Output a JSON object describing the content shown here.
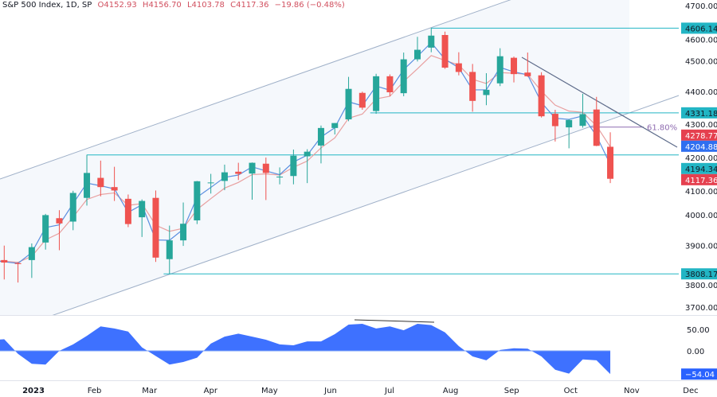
{
  "legend": {
    "symbol": "S&P 500 Index, 1D, SP",
    "open": "O4152.93",
    "high": "H4156.70",
    "low": "L4103.78",
    "close": "C4117.36",
    "change": "−19.86 (−0.48%)"
  },
  "colors": {
    "up": "#26a69a",
    "down": "#ef5350",
    "fast_ma": "#5b8fe0",
    "slow_ma": "#e8a0a0",
    "levels": "#22b5c4",
    "oscillator": "#2962ff",
    "fib": "#8e6bb0",
    "trendline": "#5d6b8a"
  },
  "chart_data": [
    {
      "type": "candlestick",
      "title": "S&P 500 Index, 1D, SP",
      "week_start": [
        "2022-12-12",
        "2022-12-19",
        "2022-12-26",
        "2023-01-02",
        "2023-01-09",
        "2023-01-16",
        "2023-01-23",
        "2023-01-30",
        "2023-02-06",
        "2023-02-13",
        "2023-02-20",
        "2023-02-27",
        "2023-03-06",
        "2023-03-13",
        "2023-03-20",
        "2023-03-27",
        "2023-04-03",
        "2023-04-10",
        "2023-04-17",
        "2023-04-24",
        "2023-05-01",
        "2023-05-08",
        "2023-05-15",
        "2023-05-22",
        "2023-05-29",
        "2023-06-05",
        "2023-06-12",
        "2023-06-19",
        "2023-06-26",
        "2023-07-03",
        "2023-07-10",
        "2023-07-17",
        "2023-07-24",
        "2023-07-31",
        "2023-08-07",
        "2023-08-14",
        "2023-08-21",
        "2023-08-28",
        "2023-09-04",
        "2023-09-11",
        "2023-09-18",
        "2023-09-25",
        "2023-10-02",
        "2023-10-09",
        "2023-10-16",
        "2023-10-23"
      ],
      "ohlc": [
        [
          3990,
          4100,
          3838,
          3852
        ],
        [
          3853,
          3900,
          3790,
          3845
        ],
        [
          3843,
          3846,
          3780,
          3840
        ],
        [
          3853,
          3907,
          3795,
          3895
        ],
        [
          3910,
          4003,
          3887,
          3999
        ],
        [
          3989,
          4015,
          3885,
          3972
        ],
        [
          3978,
          4078,
          3950,
          4071
        ],
        [
          4055,
          4195,
          4030,
          4136
        ],
        [
          4120,
          4176,
          4060,
          4090
        ],
        [
          4090,
          4156,
          4045,
          4079
        ],
        [
          4052,
          4066,
          3960,
          3970
        ],
        [
          3992,
          4050,
          3928,
          4045
        ],
        [
          4055,
          4079,
          3847,
          3861
        ],
        [
          3856,
          3965,
          3808,
          3917
        ],
        [
          3917,
          4040,
          3899,
          3971
        ],
        [
          3982,
          4110,
          3970,
          4109
        ],
        [
          4103,
          4133,
          4069,
          4105
        ],
        [
          4110,
          4163,
          4080,
          4138
        ],
        [
          4140,
          4169,
          4113,
          4133
        ],
        [
          4134,
          4170,
          4049,
          4169
        ],
        [
          4166,
          4186,
          4048,
          4136
        ],
        [
          4123,
          4154,
          4099,
          4124
        ],
        [
          4126,
          4212,
          4099,
          4192
        ],
        [
          4190,
          4213,
          4103,
          4205
        ],
        [
          4225,
          4290,
          4167,
          4282
        ],
        [
          4282,
          4298,
          4261,
          4298
        ],
        [
          4310,
          4448,
          4304,
          4409
        ],
        [
          4396,
          4400,
          4341,
          4348
        ],
        [
          4337,
          4458,
          4328,
          4450
        ],
        [
          4450,
          4456,
          4385,
          4398
        ],
        [
          4395,
          4527,
          4385,
          4505
        ],
        [
          4505,
          4578,
          4498,
          4536
        ],
        [
          4543,
          4607,
          4528,
          4582
        ],
        [
          4584,
          4595,
          4474,
          4478
        ],
        [
          4492,
          4528,
          4453,
          4464
        ],
        [
          4464,
          4490,
          4335,
          4370
        ],
        [
          4389,
          4460,
          4356,
          4406
        ],
        [
          4427,
          4541,
          4418,
          4515
        ],
        [
          4510,
          4514,
          4430,
          4457
        ],
        [
          4462,
          4527,
          4448,
          4450
        ],
        [
          4453,
          4463,
          4316,
          4320
        ],
        [
          4328,
          4341,
          4238,
          4288
        ],
        [
          4284,
          4310,
          4216,
          4308
        ],
        [
          4289,
          4393,
          4283,
          4327
        ],
        [
          4342,
          4383,
          4223,
          4224
        ],
        [
          4221,
          4268,
          4103,
          4117
        ]
      ],
      "y_ticks": [
        3700,
        3800,
        3900,
        4000,
        4100,
        4200,
        4300,
        4400,
        4500,
        4600,
        4700
      ],
      "y_tick_labels": [
        "3700.00",
        "3800.00",
        "3900.00",
        "4000.00",
        "4100.00",
        "4200.00",
        "4300.00",
        "4400.00",
        "4500.00",
        "4600.00",
        "4700.00"
      ],
      "ylim": [
        3690,
        4700
      ],
      "x_ticks": [
        {
          "date": "2023-01-01",
          "label": "2023"
        },
        {
          "date": "2023-02-01",
          "label": "Feb"
        },
        {
          "date": "2023-03-01",
          "label": "Mar"
        },
        {
          "date": "2023-04-01",
          "label": "Apr"
        },
        {
          "date": "2023-05-01",
          "label": "May"
        },
        {
          "date": "2023-06-01",
          "label": "Jun"
        },
        {
          "date": "2023-07-01",
          "label": "Jul"
        },
        {
          "date": "2023-08-01",
          "label": "Aug"
        },
        {
          "date": "2023-09-01",
          "label": "Sep"
        },
        {
          "date": "2023-10-01",
          "label": "Oct"
        },
        {
          "date": "2023-11-01",
          "label": "Nov"
        },
        {
          "date": "2023-12-01",
          "label": "Dec"
        }
      ],
      "horizontal_levels": [
        {
          "value": 4606.14,
          "label": "4606.14",
          "from": "2023-07-27"
        },
        {
          "value": 4331.18,
          "label": "4331.18",
          "from": "2023-06-26"
        },
        {
          "value": 4194.34,
          "label": "4194.34",
          "from": "2023-02-02"
        },
        {
          "value": 3808.17,
          "label": "3808.17",
          "from": "2023-03-13"
        }
      ],
      "fib_level": {
        "label": "61.80%",
        "value": 4285
      },
      "price_labels": [
        {
          "label": "4278.77",
          "kind": "slow_ma"
        },
        {
          "label": "4204.88",
          "kind": "fast_ma"
        },
        {
          "label": "4117.36",
          "kind": "last_price"
        }
      ]
    },
    {
      "type": "area",
      "values": [
        25,
        27,
        -7,
        -30,
        -32,
        0,
        15,
        35,
        57,
        52,
        45,
        8,
        -12,
        -32,
        -26,
        -16,
        17,
        33,
        40,
        33,
        26,
        15,
        13,
        22,
        22,
        39,
        61,
        63,
        52,
        57,
        48,
        63,
        60,
        43,
        11,
        -13,
        -22,
        2,
        6,
        5,
        -13,
        -44,
        -53,
        -20,
        -22,
        -54.04
      ],
      "y_ticks": [
        0,
        50
      ],
      "y_tick_labels": [
        "0.00",
        "50.00"
      ],
      "last_label": "−54.04"
    }
  ]
}
